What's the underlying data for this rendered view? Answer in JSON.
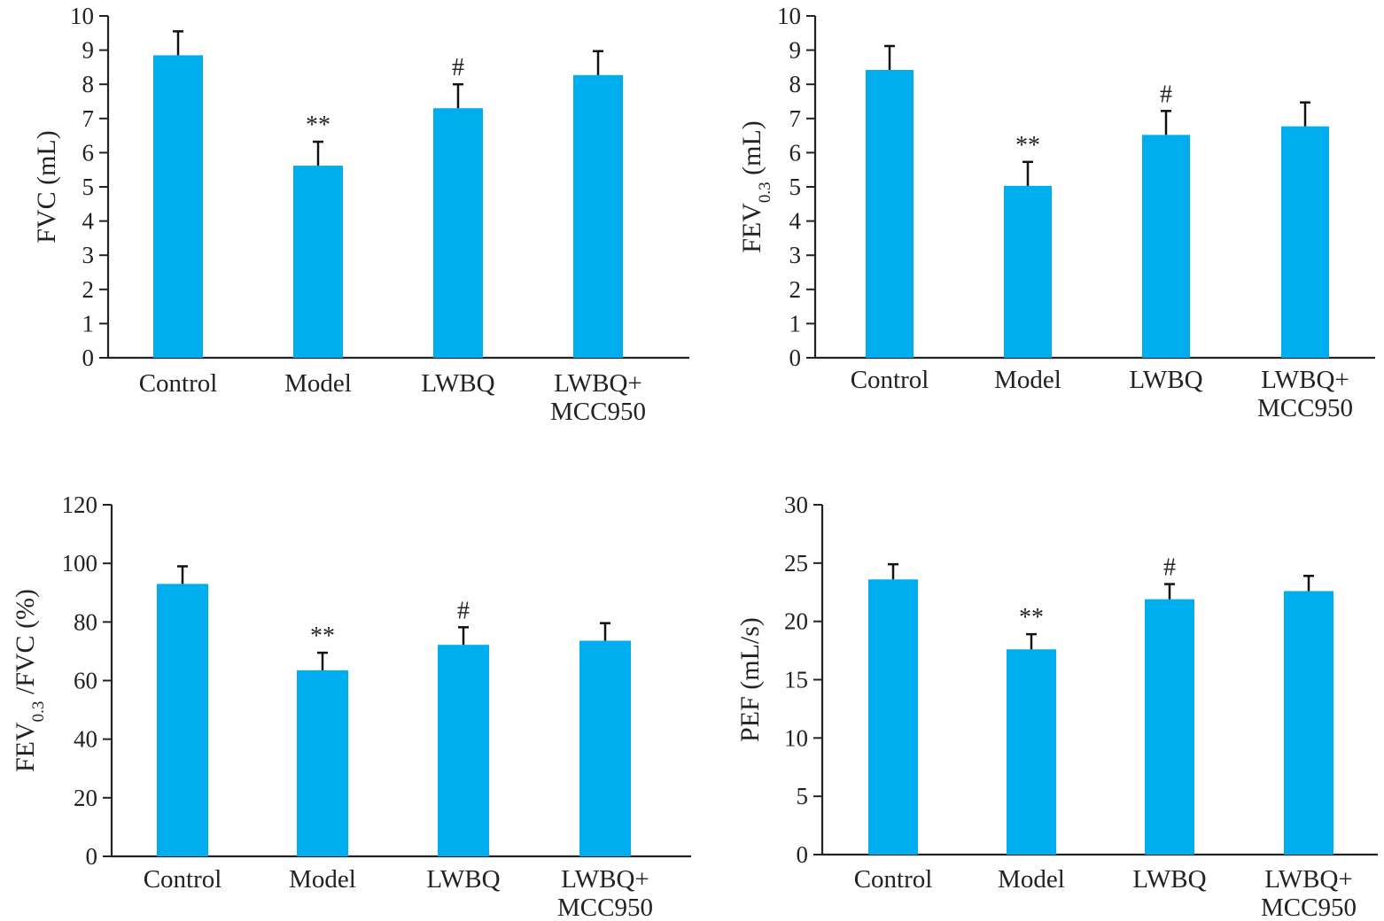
{
  "chart_data": [
    {
      "type": "bar",
      "categories": [
        "Control",
        "Model",
        "LWBQ",
        "LWBQ+\nMCC950"
      ],
      "values": [
        8.85,
        5.62,
        7.3,
        8.27
      ],
      "errors": [
        0.7,
        0.7,
        0.7,
        0.7
      ],
      "annotations": [
        "",
        "**",
        "#",
        ""
      ],
      "ylabel": "FVC (mL)",
      "ylabel_sub": "",
      "ylabel_after": "",
      "ylim": [
        0,
        10
      ],
      "yticks": [
        0,
        1,
        2,
        3,
        4,
        5,
        6,
        7,
        8,
        9,
        10
      ],
      "bar_color": "#00aeef",
      "grid": false
    },
    {
      "type": "bar",
      "categories": [
        "Control",
        "Model",
        "LWBQ",
        "LWBQ+\nMCC950"
      ],
      "values": [
        8.42,
        5.03,
        6.52,
        6.77
      ],
      "errors": [
        0.7,
        0.7,
        0.7,
        0.7
      ],
      "annotations": [
        "",
        "**",
        "#",
        ""
      ],
      "ylabel": "FEV",
      "ylabel_sub": "0.3",
      "ylabel_after": " (mL)",
      "ylim": [
        0,
        10
      ],
      "yticks": [
        0,
        1,
        2,
        3,
        4,
        5,
        6,
        7,
        8,
        9,
        10
      ],
      "bar_color": "#00aeef",
      "grid": false
    },
    {
      "type": "bar",
      "categories": [
        "Control",
        "Model",
        "LWBQ",
        "LWBQ+\nMCC950"
      ],
      "values": [
        93,
        63.5,
        72.2,
        73.6
      ],
      "errors": [
        6,
        6,
        6,
        6
      ],
      "annotations": [
        "",
        "**",
        "#",
        ""
      ],
      "ylabel": "FEV",
      "ylabel_sub": "0.3",
      "ylabel_after": " /FVC (%)",
      "ylim": [
        0,
        120
      ],
      "yticks": [
        0,
        20,
        40,
        60,
        80,
        100,
        120
      ],
      "bar_color": "#00aeef",
      "grid": false
    },
    {
      "type": "bar",
      "categories": [
        "Control",
        "Model",
        "LWBQ",
        "LWBQ+\nMCC950"
      ],
      "values": [
        23.6,
        17.6,
        21.9,
        22.6
      ],
      "errors": [
        1.3,
        1.3,
        1.3,
        1.3
      ],
      "annotations": [
        "",
        "**",
        "#",
        ""
      ],
      "ylabel": "PEF (mL/s)",
      "ylabel_sub": "",
      "ylabel_after": "",
      "ylim": [
        0,
        30
      ],
      "yticks": [
        0,
        5,
        10,
        15,
        20,
        25,
        30
      ],
      "bar_color": "#00aeef",
      "grid": false
    }
  ]
}
